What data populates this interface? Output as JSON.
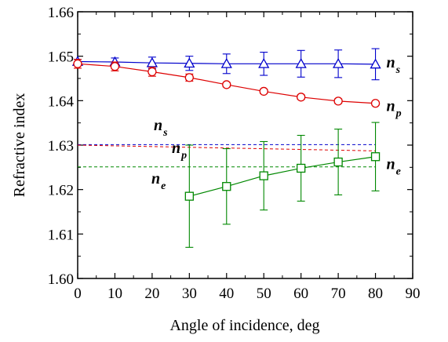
{
  "chart_data": {
    "type": "scatter",
    "xlabel": "Angle of incidence, deg",
    "ylabel": "Refractive index",
    "xlim": [
      0,
      90
    ],
    "ylim": [
      1.6,
      1.66
    ],
    "xticks": [
      "0",
      "10",
      "20",
      "30",
      "40",
      "50",
      "60",
      "70",
      "80",
      "90"
    ],
    "yticks": [
      "1.60",
      "1.61",
      "1.62",
      "1.63",
      "1.64",
      "1.65",
      "1.66"
    ],
    "grid": false,
    "series": [
      {
        "name": "n_s",
        "label_main": "n",
        "label_sub": "s",
        "color": "#0000cc",
        "marker": "triangle",
        "x": [
          0,
          10,
          20,
          30,
          40,
          50,
          60,
          70,
          80
        ],
        "y": [
          1.6488,
          1.6487,
          1.6485,
          1.6484,
          1.6483,
          1.6483,
          1.6483,
          1.6483,
          1.6482
        ],
        "err": [
          0.0005,
          0.0009,
          0.0013,
          0.0016,
          0.0022,
          0.0026,
          0.003,
          0.0031,
          0.0035
        ]
      },
      {
        "name": "n_p",
        "label_main": "n",
        "label_sub": "p",
        "color": "#dd0000",
        "marker": "circle",
        "x": [
          0,
          10,
          20,
          30,
          40,
          50,
          60,
          70,
          80
        ],
        "y": [
          1.6483,
          1.6477,
          1.6465,
          1.6452,
          1.6436,
          1.6421,
          1.6408,
          1.6399,
          1.6394
        ],
        "err": [
          0.001,
          0.001,
          0.001,
          0.0008,
          0.0005,
          0.0005,
          0.0005,
          0.0005,
          0.0004
        ]
      },
      {
        "name": "n_e",
        "label_main": "n",
        "label_sub": "e",
        "color": "#008800",
        "marker": "square",
        "x": [
          30,
          40,
          50,
          60,
          70,
          80
        ],
        "y": [
          1.6185,
          1.6207,
          1.6231,
          1.6248,
          1.6262,
          1.6274
        ],
        "err": [
          0.0115,
          0.0085,
          0.0077,
          0.0074,
          0.0074,
          0.0077
        ]
      }
    ],
    "reference_lines": [
      {
        "name": "n_s",
        "label_main": "n",
        "label_sub": "s",
        "color": "#0000cc",
        "y_start": 1.6301,
        "y_end": 1.6301
      },
      {
        "name": "n_p",
        "label_main": "n",
        "label_sub": "p",
        "color": "#dd0000",
        "y_start": 1.63,
        "y_end": 1.6287
      },
      {
        "name": "n_e",
        "label_main": "n",
        "label_sub": "e",
        "color": "#008800",
        "y_start": 1.6251,
        "y_end": 1.6251
      }
    ]
  }
}
